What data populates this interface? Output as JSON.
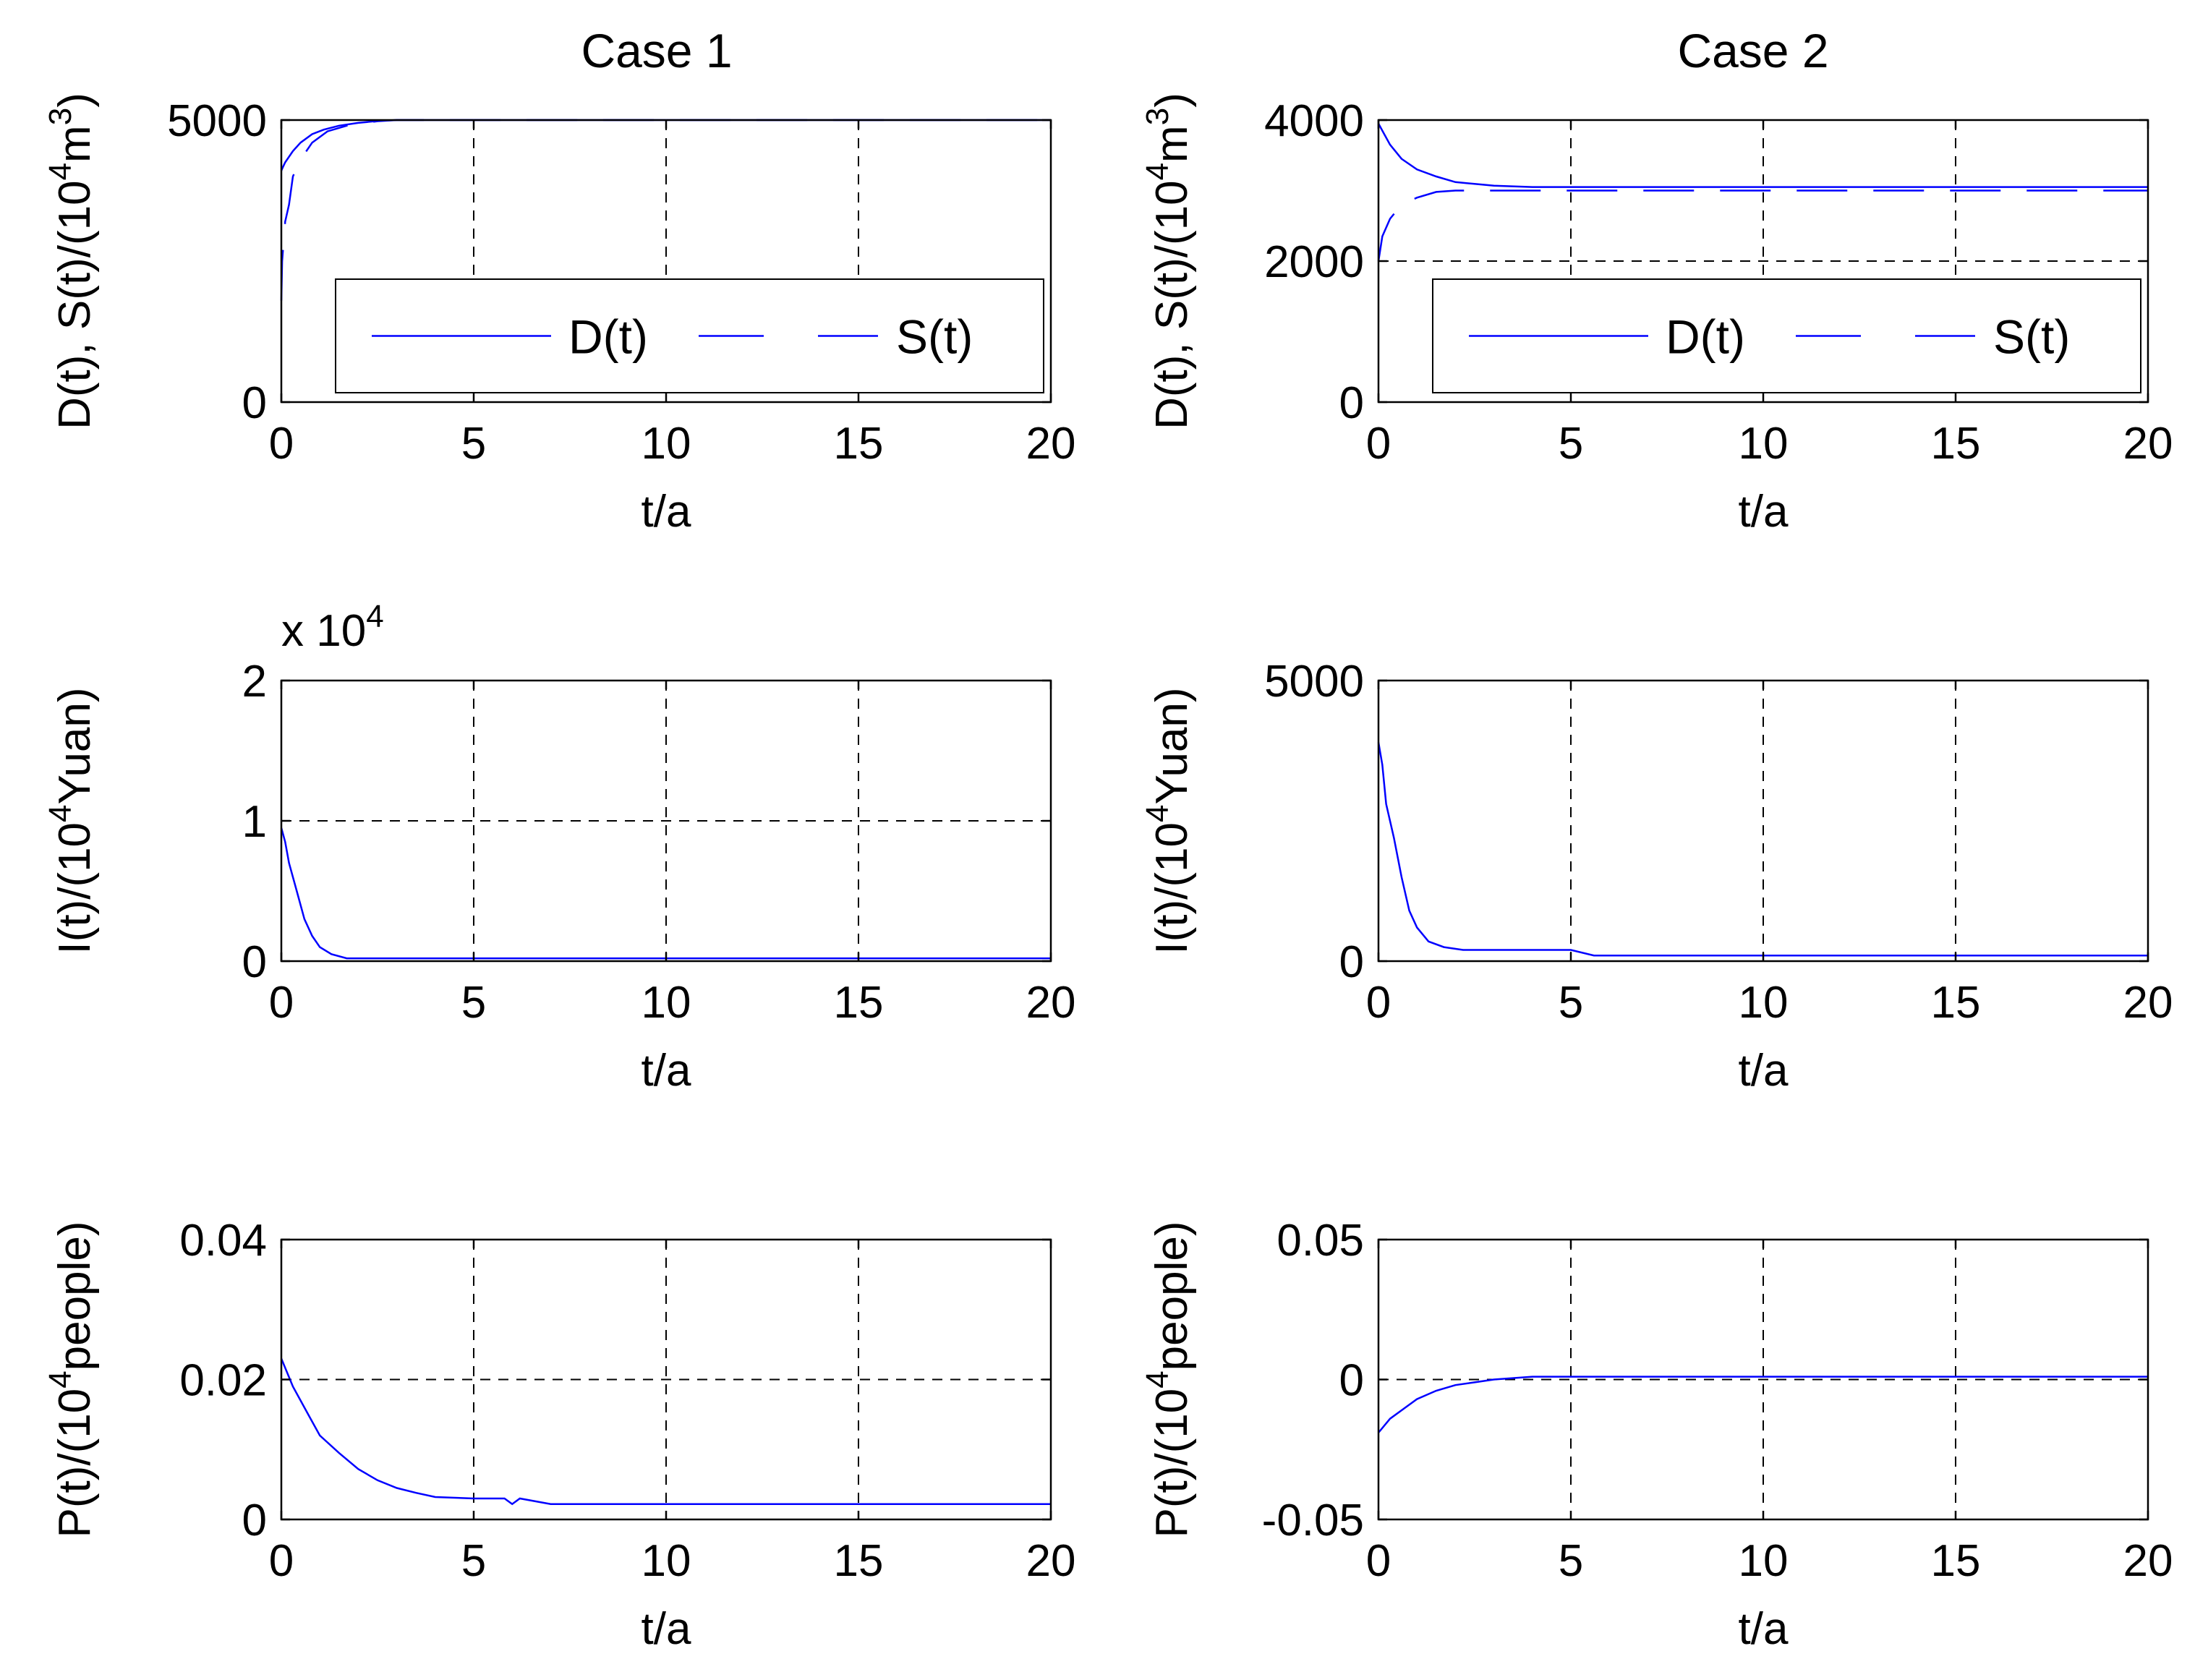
{
  "figure": {
    "case1_title": "Case 1",
    "case2_title": "Case 2"
  },
  "colors": {
    "series": "#0000ff",
    "axis": "#000000",
    "grid": "#000000",
    "background": "#ffffff"
  },
  "chart_data": [
    {
      "id": "c1r1",
      "type": "line",
      "title": "Case 1",
      "xlabel": "t/a",
      "ylabel": "D(t),  S(t)/(10^4m^3)",
      "xlim": [
        0,
        20
      ],
      "ylim": [
        0,
        5000
      ],
      "xticks": [
        "0",
        "5",
        "10",
        "15",
        "20"
      ],
      "yticks": [
        "0",
        "5000"
      ],
      "grid": "dashed",
      "legend": {
        "position": "lower-right",
        "entries": [
          "D(t)",
          "S(t)"
        ]
      },
      "series": [
        {
          "name": "D(t)",
          "style": "solid",
          "x": [
            0,
            0.03,
            0.1,
            0.3,
            0.5,
            0.8,
            1.1,
            1.5,
            2,
            2.6,
            3,
            20
          ],
          "y": [
            4100,
            4150,
            4250,
            4450,
            4600,
            4750,
            4830,
            4900,
            4950,
            4990,
            5000,
            5000
          ]
        },
        {
          "name": "S(t)",
          "style": "dashed",
          "x": [
            0,
            0.02,
            0.1,
            0.2,
            0.3,
            0.5,
            0.8,
            1.2,
            1.7,
            2.5,
            3,
            20
          ],
          "y": [
            1800,
            2500,
            3200,
            3500,
            4000,
            4300,
            4600,
            4800,
            4900,
            4980,
            5000,
            5000
          ]
        }
      ]
    },
    {
      "id": "c2r1",
      "type": "line",
      "title": "Case 2",
      "xlabel": "t/a",
      "ylabel": "D(t),  S(t)/(10^4m^3)",
      "xlim": [
        0,
        20
      ],
      "ylim": [
        0,
        4000
      ],
      "xticks": [
        "0",
        "5",
        "10",
        "15",
        "20"
      ],
      "yticks": [
        "0",
        "2000",
        "4000"
      ],
      "grid": "dashed",
      "legend": {
        "position": "lower-right",
        "entries": [
          "D(t)",
          "S(t)"
        ]
      },
      "series": [
        {
          "name": "D(t)",
          "style": "solid",
          "x": [
            0,
            0.1,
            0.3,
            0.6,
            1,
            1.5,
            2,
            3,
            4,
            20
          ],
          "y": [
            3950,
            3850,
            3650,
            3450,
            3300,
            3200,
            3120,
            3070,
            3050,
            3050
          ]
        },
        {
          "name": "S(t)",
          "style": "dashed",
          "x": [
            0,
            0.1,
            0.3,
            0.6,
            1,
            1.5,
            2,
            3,
            20
          ],
          "y": [
            2000,
            2350,
            2600,
            2800,
            2900,
            2980,
            3000,
            3000,
            3000
          ]
        }
      ]
    },
    {
      "id": "c1r2",
      "type": "line",
      "xlabel": "t/a",
      "ylabel": "I(t)/(10^4Yuan)",
      "y_multiplier": "x 10^4",
      "xlim": [
        0,
        20
      ],
      "ylim": [
        0,
        2
      ],
      "xticks": [
        "0",
        "5",
        "10",
        "15",
        "20"
      ],
      "yticks": [
        "0",
        "1",
        "2"
      ],
      "grid": "dashed",
      "series": [
        {
          "name": "I(t)",
          "style": "solid",
          "x": [
            0,
            0.1,
            0.2,
            0.4,
            0.6,
            0.8,
            1,
            1.3,
            1.7,
            2.5,
            20
          ],
          "y": [
            0.95,
            0.85,
            0.7,
            0.5,
            0.3,
            0.18,
            0.1,
            0.05,
            0.02,
            0.02,
            0.02
          ]
        }
      ]
    },
    {
      "id": "c2r2",
      "type": "line",
      "xlabel": "t/a",
      "ylabel": "I(t)/(10^4Yuan)",
      "xlim": [
        0,
        20
      ],
      "ylim": [
        0,
        5000
      ],
      "xticks": [
        "0",
        "5",
        "10",
        "15",
        "20"
      ],
      "yticks": [
        "0",
        "5000"
      ],
      "grid": "dashed",
      "series": [
        {
          "name": "I(t)",
          "style": "solid",
          "x": [
            0,
            0.1,
            0.2,
            0.4,
            0.6,
            0.8,
            1,
            1.3,
            1.7,
            2.2,
            5,
            5.6,
            20
          ],
          "y": [
            3900,
            3500,
            2800,
            2200,
            1500,
            900,
            600,
            350,
            250,
            200,
            200,
            100,
            100
          ]
        }
      ]
    },
    {
      "id": "c1r3",
      "type": "line",
      "xlabel": "t/a",
      "ylabel": "P(t)/(10^4people)",
      "xlim": [
        0,
        20
      ],
      "ylim": [
        0,
        0.04
      ],
      "xticks": [
        "0",
        "5",
        "10",
        "15",
        "20"
      ],
      "yticks": [
        "0",
        "0.02",
        "0.04"
      ],
      "grid": "dashed",
      "series": [
        {
          "name": "P(t)",
          "style": "solid",
          "x": [
            0,
            0.3,
            0.7,
            1,
            1.5,
            2,
            2.5,
            3,
            3.5,
            4,
            5,
            5.8,
            6,
            6.2,
            7,
            8,
            20
          ],
          "y": [
            0.023,
            0.019,
            0.015,
            0.012,
            0.0095,
            0.0072,
            0.0056,
            0.0045,
            0.0038,
            0.0032,
            0.003,
            0.003,
            0.0022,
            0.003,
            0.0022,
            0.0022,
            0.0022
          ]
        }
      ]
    },
    {
      "id": "c2r3",
      "type": "line",
      "xlabel": "t/a",
      "ylabel": "P(t)/(10^4people)",
      "xlim": [
        0,
        20
      ],
      "ylim": [
        -0.05,
        0.05
      ],
      "xticks": [
        "0",
        "5",
        "10",
        "15",
        "20"
      ],
      "yticks": [
        "-0.05",
        "0",
        "0.05"
      ],
      "grid": "dashed",
      "series": [
        {
          "name": "P(t)",
          "style": "solid",
          "x": [
            0,
            0.3,
            0.7,
            1,
            1.5,
            2,
            2.5,
            3,
            4,
            20
          ],
          "y": [
            -0.019,
            -0.014,
            -0.01,
            -0.007,
            -0.004,
            -0.002,
            -0.001,
            0,
            0.001,
            0.001
          ]
        }
      ]
    }
  ]
}
